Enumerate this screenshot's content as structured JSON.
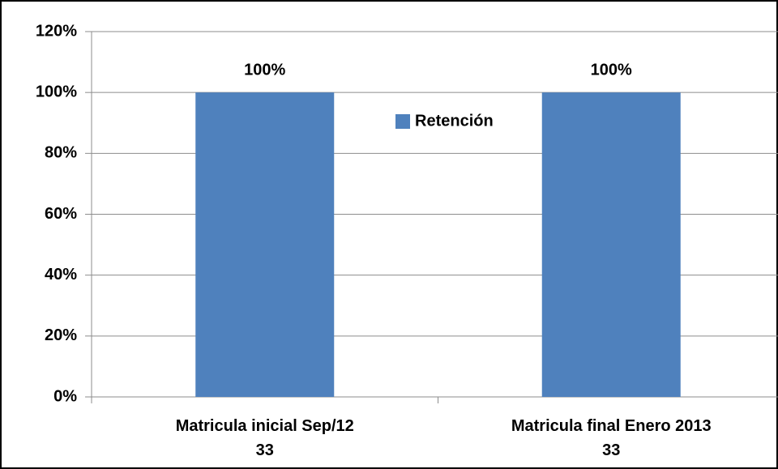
{
  "chart_data": {
    "type": "bar",
    "categories": [
      "Matricula inicial Sep/12\n33",
      "Matricula final Enero 2013\n33"
    ],
    "series": [
      {
        "name": "Retención",
        "color": "#4f81bd",
        "values": [
          100,
          100
        ],
        "value_labels": [
          "100%",
          "100%"
        ]
      }
    ],
    "ylim": [
      0,
      120
    ],
    "yticks": [
      {
        "value": 0,
        "label": "0%"
      },
      {
        "value": 20,
        "label": "20%"
      },
      {
        "value": 40,
        "label": "40%"
      },
      {
        "value": 60,
        "label": "60%"
      },
      {
        "value": 80,
        "label": "80%"
      },
      {
        "value": 100,
        "label": "100%"
      },
      {
        "value": 120,
        "label": "120%"
      }
    ],
    "grid": true,
    "legend": "top-center"
  }
}
